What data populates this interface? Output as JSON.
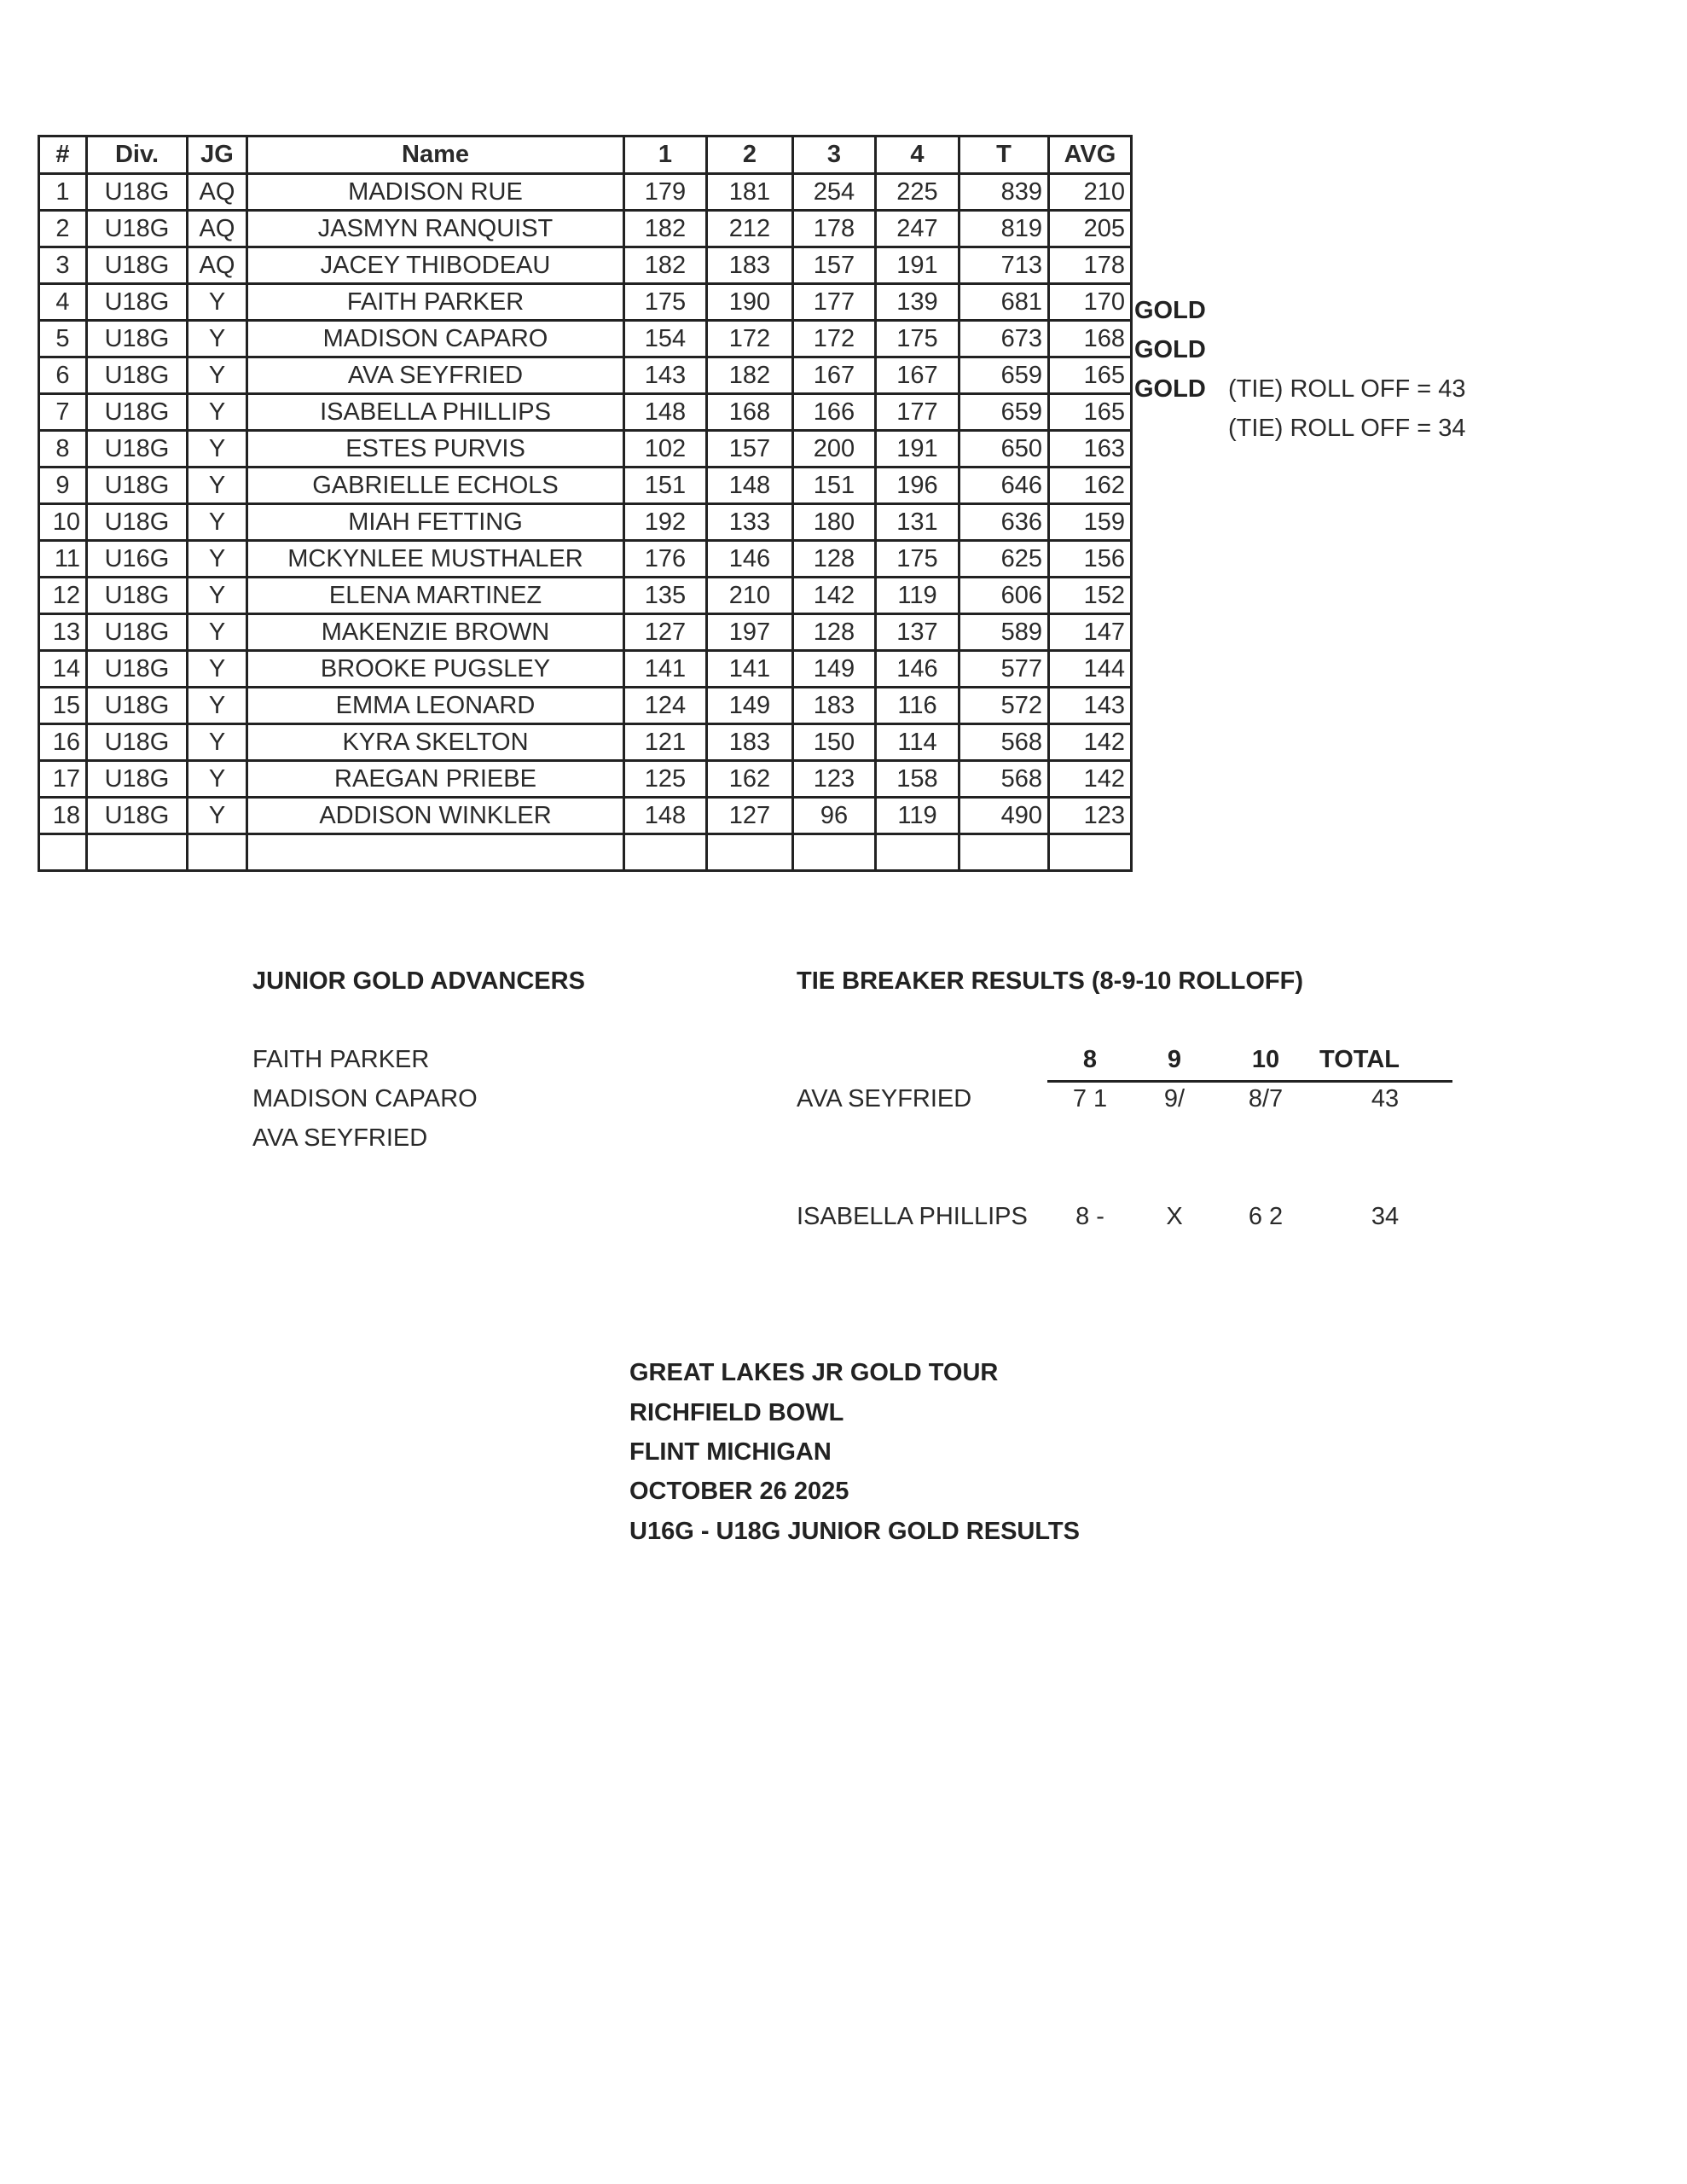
{
  "table": {
    "headers": [
      "#",
      "Div.",
      "JG",
      "Name",
      "1",
      "2",
      "3",
      "4",
      "T",
      "AVG"
    ],
    "rows": [
      [
        "1",
        "U18G",
        "AQ",
        "MADISON RUE",
        "179",
        "181",
        "254",
        "225",
        "839",
        "210"
      ],
      [
        "2",
        "U18G",
        "AQ",
        "JASMYN RANQUIST",
        "182",
        "212",
        "178",
        "247",
        "819",
        "205"
      ],
      [
        "3",
        "U18G",
        "AQ",
        "JACEY THIBODEAU",
        "182",
        "183",
        "157",
        "191",
        "713",
        "178"
      ],
      [
        "4",
        "U18G",
        "Y",
        "FAITH PARKER",
        "175",
        "190",
        "177",
        "139",
        "681",
        "170"
      ],
      [
        "5",
        "U18G",
        "Y",
        "MADISON CAPARO",
        "154",
        "172",
        "172",
        "175",
        "673",
        "168"
      ],
      [
        "6",
        "U18G",
        "Y",
        "AVA SEYFRIED",
        "143",
        "182",
        "167",
        "167",
        "659",
        "165"
      ],
      [
        "7",
        "U18G",
        "Y",
        "ISABELLA PHILLIPS",
        "148",
        "168",
        "166",
        "177",
        "659",
        "165"
      ],
      [
        "8",
        "U18G",
        "Y",
        "ESTES PURVIS",
        "102",
        "157",
        "200",
        "191",
        "650",
        "163"
      ],
      [
        "9",
        "U18G",
        "Y",
        "GABRIELLE ECHOLS",
        "151",
        "148",
        "151",
        "196",
        "646",
        "162"
      ],
      [
        "10",
        "U18G",
        "Y",
        "MIAH FETTING",
        "192",
        "133",
        "180",
        "131",
        "636",
        "159"
      ],
      [
        "11",
        "U16G",
        "Y",
        "MCKYNLEE MUSTHALER",
        "176",
        "146",
        "128",
        "175",
        "625",
        "156"
      ],
      [
        "12",
        "U18G",
        "Y",
        "ELENA MARTINEZ",
        "135",
        "210",
        "142",
        "119",
        "606",
        "152"
      ],
      [
        "13",
        "U18G",
        "Y",
        "MAKENZIE BROWN",
        "127",
        "197",
        "128",
        "137",
        "589",
        "147"
      ],
      [
        "14",
        "U18G",
        "Y",
        "BROOKE PUGSLEY",
        "141",
        "141",
        "149",
        "146",
        "577",
        "144"
      ],
      [
        "15",
        "U18G",
        "Y",
        "EMMA LEONARD",
        "124",
        "149",
        "183",
        "116",
        "572",
        "143"
      ],
      [
        "16",
        "U18G",
        "Y",
        "KYRA SKELTON",
        "121",
        "183",
        "150",
        "114",
        "568",
        "142"
      ],
      [
        "17",
        "U18G",
        "Y",
        "RAEGAN PRIEBE",
        "125",
        "162",
        "123",
        "158",
        "568",
        "142"
      ],
      [
        "18",
        "U18G",
        "Y",
        "ADDISON WINKLER",
        "148",
        "127",
        "96",
        "119",
        "490",
        "123"
      ],
      [
        "",
        "",
        "",
        "",
        "",
        "",
        "",
        "",
        "",
        ""
      ]
    ],
    "side_notes": [
      {
        "row": 4,
        "gold": "GOLD",
        "tie": ""
      },
      {
        "row": 5,
        "gold": "GOLD",
        "tie": ""
      },
      {
        "row": 6,
        "gold": "GOLD",
        "tie": "(TIE) ROLL OFF = 43"
      },
      {
        "row": 7,
        "gold": "",
        "tie": "(TIE) ROLL OFF = 34"
      }
    ]
  },
  "advancers": {
    "title": "JUNIOR GOLD ADVANCERS",
    "names": [
      "FAITH PARKER",
      "MADISON CAPARO",
      "AVA SEYFRIED"
    ]
  },
  "tiebreaker": {
    "title": "TIE BREAKER RESULTS (8-9-10 ROLLOFF)",
    "headers": [
      "8",
      "9",
      "10",
      "TOTAL"
    ],
    "rows": [
      {
        "name": "AVA SEYFRIED",
        "f8": "7 1",
        "f9": "9/",
        "f10": "8/7",
        "total": "43"
      },
      {
        "name": "ISABELLA PHILLIPS",
        "f8": "8 -",
        "f9": "X",
        "f10": "6 2",
        "total": "34"
      }
    ]
  },
  "footer": [
    "GREAT LAKES JR GOLD TOUR",
    "RICHFIELD BOWL",
    "FLINT MICHIGAN",
    "OCTOBER 26 2025",
    "U16G - U18G JUNIOR GOLD RESULTS"
  ]
}
